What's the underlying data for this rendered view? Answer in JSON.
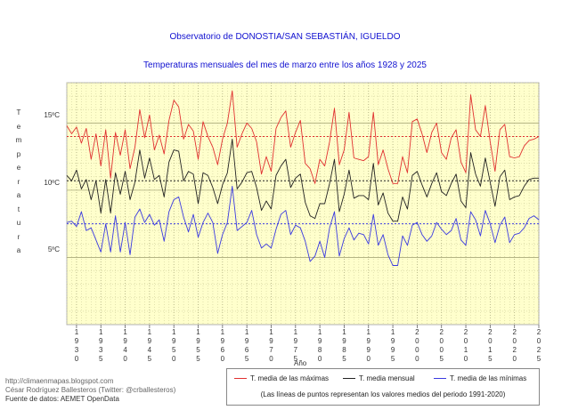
{
  "chart_data": {
    "type": "line",
    "title": "Observatorio de DONOSTIA/SAN SEBASTIÁN, IGUELDO",
    "subtitle": "Temperaturas mensuales del mes de marzo entre los años 1928 y 2025",
    "xlabel": "Año",
    "ylabel": "Temperatura",
    "ylabel_letters": [
      "T",
      "e",
      "m",
      "p",
      "e",
      "r",
      "a",
      "t",
      "u",
      "r",
      "a"
    ],
    "x_range": [
      1928,
      2025
    ],
    "ylim": [
      0,
      18
    ],
    "grid": true,
    "x_ticks": [
      1930,
      1935,
      1940,
      1945,
      1950,
      1955,
      1960,
      1965,
      1970,
      1975,
      1980,
      1985,
      1990,
      1995,
      2000,
      2005,
      2010,
      2015,
      2020,
      2025
    ],
    "y_ticks": [
      {
        "value": 5,
        "label": "5ºC"
      },
      {
        "value": 10,
        "label": "10ºC"
      },
      {
        "value": 15,
        "label": "15ºC"
      }
    ],
    "series": [
      {
        "name": "T. media de las máximas",
        "color": "#e03030",
        "mean_1991_2020": 14.0,
        "values": [
          14.8,
          14.2,
          14.7,
          13.5,
          14.6,
          12.3,
          14.2,
          11.8,
          14.5,
          10.9,
          14.3,
          12.6,
          14.5,
          11.6,
          13.2,
          16.0,
          13.9,
          15.6,
          13.0,
          14.1,
          12.7,
          15.2,
          16.7,
          16.2,
          13.8,
          14.9,
          14.4,
          12.3,
          15.1,
          14.0,
          13.2,
          11.9,
          13.8,
          15.0,
          17.4,
          13.2,
          14.2,
          15.0,
          14.6,
          13.6,
          11.2,
          12.5,
          11.4,
          14.6,
          15.4,
          15.9,
          13.2,
          14.3,
          15.2,
          12.0,
          11.6,
          10.5,
          12.3,
          11.8,
          13.6,
          16.1,
          11.9,
          13.0,
          15.8,
          12.4,
          12.3,
          12.2,
          12.5,
          15.8,
          11.9,
          13.0,
          11.6,
          10.5,
          10.5,
          12.5,
          11.3,
          15.1,
          15.3,
          14.2,
          12.8,
          14.3,
          15.0,
          12.8,
          12.3,
          13.9,
          14.5,
          12.1,
          11.3,
          17.1,
          14.5,
          14.0,
          16.3,
          13.6,
          11.4,
          14.5,
          14.9,
          12.5,
          12.4,
          12.5,
          13.3,
          13.7,
          13.8,
          14.0
        ]
      },
      {
        "name": "T. media mensual",
        "color": "#222222",
        "mean_1991_2020": 10.7,
        "values": [
          11.1,
          10.7,
          11.5,
          10.1,
          10.8,
          9.3,
          10.7,
          8.3,
          10.8,
          8.3,
          11.3,
          9.7,
          11.4,
          9.3,
          10.6,
          13.0,
          10.9,
          12.4,
          10.8,
          11.1,
          9.5,
          12.1,
          13.0,
          12.9,
          10.7,
          11.4,
          11.2,
          9.0,
          11.3,
          11.1,
          10.2,
          9.0,
          10.4,
          11.3,
          13.8,
          10.1,
          10.6,
          11.3,
          11.4,
          10.2,
          8.5,
          9.2,
          8.6,
          11.1,
          11.8,
          12.3,
          10.2,
          10.9,
          11.2,
          9.1,
          8.1,
          7.9,
          9.0,
          9.0,
          10.5,
          12.3,
          8.4,
          9.7,
          11.5,
          9.4,
          9.6,
          9.6,
          9.3,
          12.0,
          8.9,
          9.8,
          8.3,
          7.7,
          7.7,
          9.5,
          8.6,
          11.1,
          11.4,
          10.4,
          9.5,
          10.5,
          11.3,
          9.9,
          9.6,
          10.5,
          11.2,
          9.2,
          8.7,
          12.8,
          11.2,
          10.3,
          12.4,
          10.6,
          8.8,
          11.0,
          11.5,
          9.3,
          9.5,
          9.6,
          10.3,
          10.8,
          10.9,
          10.9
        ]
      },
      {
        "name": "T. media de las mínimas",
        "color": "#3a3ae0",
        "mean_1991_2020": 7.5,
        "values": [
          7.6,
          7.7,
          7.3,
          8.4,
          7.0,
          7.2,
          6.3,
          5.4,
          7.5,
          5.4,
          8.1,
          5.4,
          7.6,
          5.2,
          8.0,
          8.6,
          7.6,
          8.2,
          7.4,
          7.8,
          6.2,
          8.4,
          9.3,
          9.5,
          8.0,
          6.9,
          8.2,
          6.5,
          7.6,
          8.3,
          7.6,
          5.3,
          6.7,
          7.6,
          10.3,
          7.0,
          7.3,
          7.6,
          8.5,
          6.7,
          5.7,
          6.0,
          5.7,
          7.1,
          8.2,
          8.5,
          6.7,
          7.4,
          7.2,
          6.2,
          4.7,
          5.1,
          6.2,
          5.0,
          7.2,
          8.4,
          5.1,
          6.4,
          7.2,
          6.3,
          6.8,
          6.7,
          6.0,
          8.2,
          5.9,
          6.7,
          5.2,
          4.4,
          4.4,
          6.6,
          5.9,
          7.4,
          7.6,
          6.7,
          6.2,
          6.6,
          7.6,
          7.1,
          6.7,
          7.0,
          7.9,
          6.3,
          5.9,
          8.4,
          7.8,
          6.6,
          8.5,
          7.5,
          6.1,
          7.4,
          8.0,
          6.1,
          6.7,
          6.8,
          7.2,
          7.9,
          8.1,
          7.8
        ]
      }
    ],
    "legend": {
      "position": "bottom-right",
      "entries": [
        "T. media de las máximas",
        "T. media mensual",
        "T. media de las mínimas"
      ],
      "note": "(Las líneas de puntos representan los valores medios del periodo 1991-2020)"
    }
  },
  "credits": {
    "blog": "http://climaenmapas.blogspot.com",
    "author": "César Rodríguez Ballesteros (Twitter: @crballesteros)",
    "source": "Fuente de datos: AEMET OpenData"
  }
}
